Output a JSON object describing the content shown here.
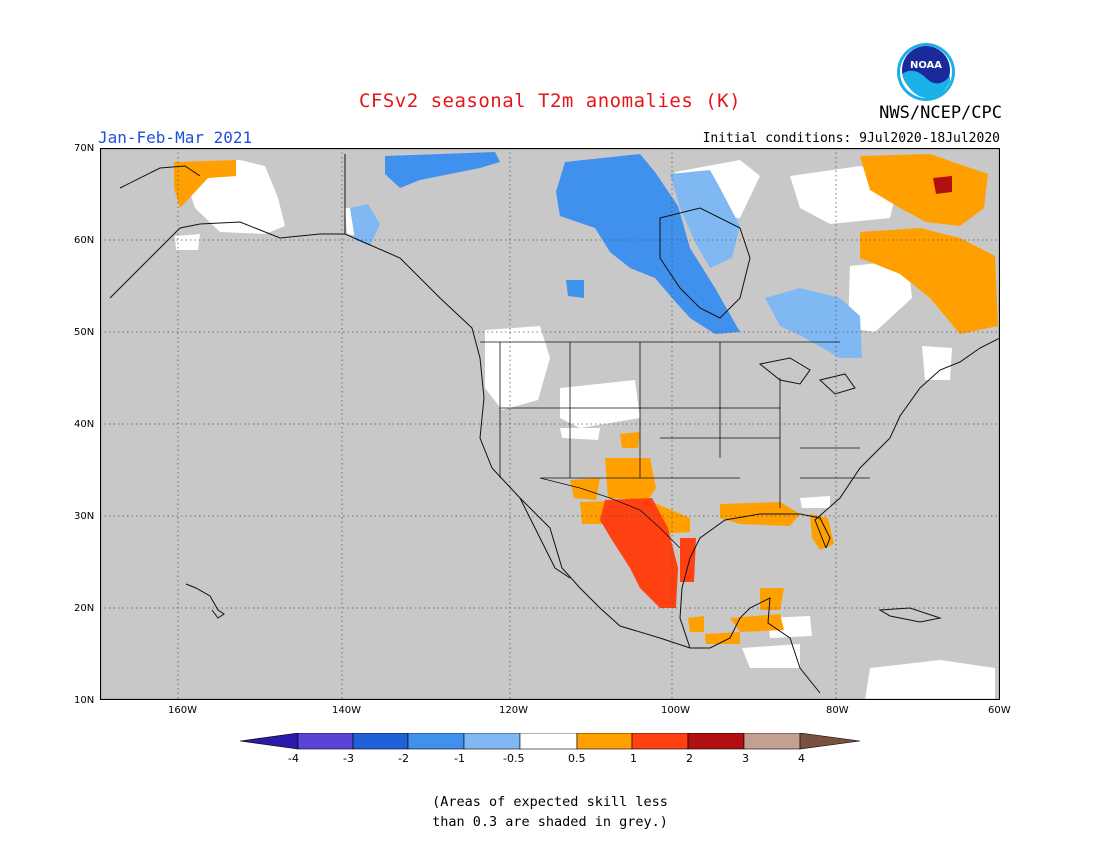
{
  "title": "CFSv2 seasonal T2m anomalies (K)",
  "period": "Jan-Feb-Mar 2021",
  "initial_conditions": "Initial conditions: 9Jul2020-18Jul2020",
  "agency": "NWS/NCEP/CPC",
  "logo_text": "NOAA",
  "lat_ticks": [
    "70N",
    "60N",
    "50N",
    "40N",
    "30N",
    "20N",
    "10N"
  ],
  "lon_ticks": [
    "160W",
    "140W",
    "120W",
    "100W",
    "80W",
    "60W"
  ],
  "colorbar": {
    "labels": [
      "-4",
      "-3",
      "-2",
      "-1",
      "-0.5",
      "0.5",
      "1",
      "2",
      "3",
      "4"
    ],
    "colors": [
      "#2a1ca8",
      "#5a44d6",
      "#2060d8",
      "#4090ee",
      "#80b8f4",
      "#ffffff",
      "#ffa000",
      "#ff4010",
      "#b01010",
      "#c4a090",
      "#7a5040"
    ]
  },
  "footnote": [
    "(Areas of expected skill less",
    "than 0.3 are shaded in grey.)"
  ],
  "colors": {
    "grey": "#c8c8c8",
    "title": "#e4161c",
    "period": "#2050d8"
  }
}
